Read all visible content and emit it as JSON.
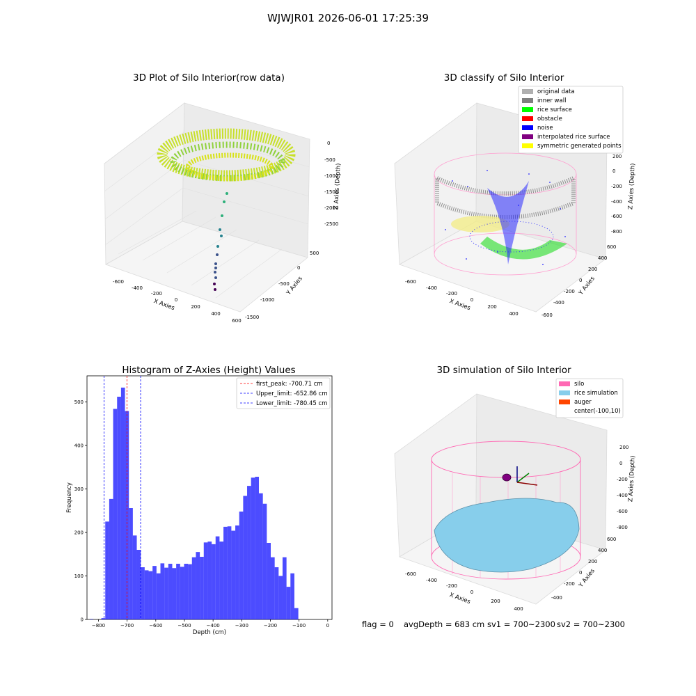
{
  "figure": {
    "suptitle": "WJWJR01 2026-06-01 17:25:39",
    "footer": {
      "flag": "flag = 0",
      "avg_depth": "avgDepth = 683 cm",
      "sv1": "sv1 = 700~2300",
      "sv2": "sv2 = 700~2300"
    }
  },
  "panels": {
    "raw": {
      "title": "3D Plot of Silo Interior(row data)",
      "xlabel": "X Axies",
      "ylabel": "Y Axies",
      "zlabel": "Z Axies (Depth)",
      "x_ticks": [
        "-600",
        "-400",
        "-200",
        "0",
        "200",
        "400",
        "600"
      ],
      "y_ticks": [
        "500",
        "0",
        "-500",
        "-1000",
        "-1500"
      ],
      "z_ticks": [
        "0",
        "-500",
        "-1000",
        "-1500",
        "-2000",
        "-2500"
      ]
    },
    "classify": {
      "title": "3D classify of Silo Interior",
      "xlabel": "X Axies",
      "ylabel": "Y Axies",
      "zlabel": "Z Axies (Depth)",
      "x_ticks": [
        "-600",
        "-400",
        "-200",
        "0",
        "200",
        "400"
      ],
      "y_ticks": [
        "600",
        "400",
        "200",
        "0",
        "-200",
        "-400",
        "-600"
      ],
      "z_ticks": [
        "200",
        "0",
        "-200",
        "-400",
        "-600",
        "-800"
      ],
      "legend": [
        {
          "label": "original data",
          "color": "#b0b0b0"
        },
        {
          "label": "inner wall",
          "color": "#808080"
        },
        {
          "label": "rice surface",
          "color": "#00ff00"
        },
        {
          "label": "obstacle",
          "color": "#ff0000"
        },
        {
          "label": "noise",
          "color": "#0000ff"
        },
        {
          "label": "interpolated rice surface",
          "color": "#800080"
        },
        {
          "label": "symmetric generated points",
          "color": "#ffff00"
        }
      ]
    },
    "simulation": {
      "title": "3D simulation of Silo Interior",
      "xlabel": "X Axies",
      "ylabel": "Y Axies",
      "zlabel": "Z Axies (Depth)",
      "x_ticks": [
        "-600",
        "-400",
        "-200",
        "0",
        "200",
        "400"
      ],
      "y_ticks": [
        "600",
        "400",
        "200",
        "0",
        "-200",
        "-400"
      ],
      "z_ticks": [
        "200",
        "0",
        "-200",
        "-400",
        "-600",
        "-800"
      ],
      "legend": [
        {
          "label": "silo",
          "color": "#ff69b4"
        },
        {
          "label": "rice simulation",
          "color": "#87ceeb"
        },
        {
          "label": "auger",
          "color": "#ff4500"
        },
        {
          "label": "center(-100,10)",
          "color": ""
        }
      ]
    }
  },
  "chart_data": {
    "type": "bar",
    "title": "Histogram of Z-Axies (Height) Values",
    "xlabel": "Depth (cm)",
    "ylabel": "Frequency",
    "xlim": [
      -840,
      15
    ],
    "ylim": [
      0,
      560
    ],
    "x_ticks": [
      -800,
      -700,
      -600,
      -500,
      -400,
      -300,
      -200,
      -100,
      0
    ],
    "y_ticks": [
      0,
      100,
      200,
      300,
      400,
      500
    ],
    "bar_color": "#0000ff",
    "bins": {
      "edges": [
        -790,
        -776.25,
        -762.5,
        -748.75,
        -735,
        -721.25,
        -707.5,
        -693.75,
        -680,
        -666.25,
        -652.5,
        -638.75,
        -625,
        -611.25,
        -597.5,
        -583.75,
        -570,
        -556.25,
        -542.5,
        -528.75,
        -515,
        -501.25,
        -487.5,
        -473.75,
        -460,
        -446.25,
        -432.5,
        -418.75,
        -405,
        -391.25,
        -377.5,
        -363.75,
        -350,
        -336.25,
        -322.5,
        -308.75,
        -295,
        -281.25,
        -267.5,
        -253.75,
        -240,
        -226.25,
        -212.5,
        -198.75,
        -185,
        -171.25,
        -157.5,
        -143.75,
        -130,
        -116.25,
        -102.5,
        -88.75,
        -75,
        -61.25,
        -47.5,
        -33.75,
        -20,
        -6.25
      ],
      "counts": [
        3,
        225,
        277,
        484,
        512,
        533,
        479,
        256,
        193,
        160,
        120,
        113,
        111,
        123,
        106,
        129,
        119,
        128,
        118,
        128,
        121,
        128,
        127,
        143,
        155,
        144,
        177,
        179,
        173,
        191,
        179,
        213,
        214,
        204,
        216,
        248,
        284,
        307,
        326,
        328,
        290,
        266,
        176,
        143,
        120,
        100,
        143,
        75,
        106,
        26,
        0,
        0,
        0,
        0,
        0,
        0,
        0
      ]
    },
    "outlier_bars": [
      {
        "x0": -830,
        "x1": -818,
        "count": 1
      }
    ],
    "lines": [
      {
        "label": "first_peak: -700.71 cm",
        "x": -700.71,
        "color": "#ff0000"
      },
      {
        "label": "Upper_limit: -652.86 cm",
        "x": -652.86,
        "color": "#0000ff"
      },
      {
        "label": "Lower_limit: -780.45 cm",
        "x": -780.45,
        "color": "#0000ff"
      }
    ],
    "legend_position": "top-right"
  }
}
